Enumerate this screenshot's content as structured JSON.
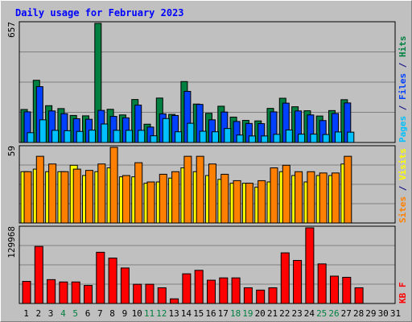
{
  "chart_data": {
    "type": "bar",
    "title": "Daily usage for February 2023",
    "categories": [
      "1",
      "2",
      "3",
      "4",
      "5",
      "6",
      "7",
      "8",
      "9",
      "10",
      "11",
      "12",
      "13",
      "14",
      "15",
      "16",
      "17",
      "18",
      "19",
      "20",
      "21",
      "22",
      "23",
      "24",
      "25",
      "26",
      "27",
      "28",
      "29",
      "30",
      "31"
    ],
    "weekend_days": [
      4,
      5,
      11,
      12,
      18,
      19,
      25,
      26
    ],
    "panels": [
      {
        "max_label": "657",
        "max": 657,
        "label_parts": [
          {
            "text": "Pages",
            "color": "#00c0ff"
          },
          {
            "text": " / ",
            "color": "#000080"
          },
          {
            "text": "Files",
            "color": "#0040ff"
          },
          {
            "text": " / ",
            "color": "#000080"
          },
          {
            "text": "Hits",
            "color": "#008040"
          }
        ],
        "series": [
          {
            "name": "Hits",
            "color": "#008040",
            "values": [
              182,
              343,
              203,
              187,
              149,
              147,
              657,
              183,
              152,
              237,
              101,
              245,
              155,
              336,
              212,
              161,
              200,
              140,
              122,
              119,
              188,
              244,
              197,
              175,
              146,
              176,
              236,
              0,
              0,
              0,
              0
            ]
          },
          {
            "name": "Files",
            "color": "#0040ff",
            "values": [
              169,
              308,
              174,
              159,
              131,
              128,
              177,
              144,
              136,
              206,
              85,
              158,
              149,
              282,
              210,
              125,
              168,
              116,
              105,
              104,
              169,
              217,
              174,
              152,
              121,
              160,
              218,
              0,
              0,
              0,
              0
            ]
          },
          {
            "name": "Pages",
            "color": "#00c0ff",
            "values": [
              54,
              125,
              67,
              65,
              61,
              68,
              102,
              67,
              67,
              67,
              37,
              132,
              59,
              106,
              62,
              59,
              77,
              41,
              36,
              36,
              45,
              69,
              46,
              46,
              44,
              58,
              57,
              0,
              0,
              0,
              0
            ]
          }
        ]
      },
      {
        "max_label": "59",
        "max": 59,
        "label_parts": [
          {
            "text": "Sites",
            "color": "#ff8000"
          },
          {
            "text": " / ",
            "color": "#000080"
          },
          {
            "text": "Visits",
            "color": "#ffff00"
          }
        ],
        "series": [
          {
            "name": "Visits",
            "color": "#ffff00",
            "values": [
              40,
              42,
              40,
              40,
              45,
              37,
              40,
              43,
              36,
              36,
              31,
              32,
              35,
              43,
              40,
              37,
              34,
              31,
              31,
              28,
              32,
              40,
              37,
              32,
              37,
              37,
              46,
              0,
              0,
              0,
              0
            ]
          },
          {
            "name": "Sites",
            "color": "#ff8000",
            "values": [
              40,
              52,
              46,
              40,
              42,
              41,
              46,
              59,
              37,
              47,
              32,
              38,
              40,
              52,
              52,
              46,
              38,
              33,
              31,
              33,
              43,
              45,
              40,
              40,
              39,
              39,
              52,
              0,
              0,
              0,
              0
            ]
          }
        ]
      },
      {
        "max_label": "129968",
        "max": 129968,
        "label_parts": [
          {
            "text": "KB F",
            "color": "#ff0000"
          }
        ],
        "series": [
          {
            "name": "KB F",
            "color": "#ff0000",
            "values": [
              38000,
              98000,
              41000,
              37000,
              37000,
              31000,
              88000,
              78000,
              61000,
              33000,
              33000,
              27000,
              8000,
              51000,
              57000,
              40000,
              44000,
              44000,
              27000,
              23000,
              27000,
              87000,
              74000,
              129968,
              68000,
              47000,
              45000,
              27000,
              0,
              0,
              0
            ]
          }
        ]
      }
    ]
  }
}
